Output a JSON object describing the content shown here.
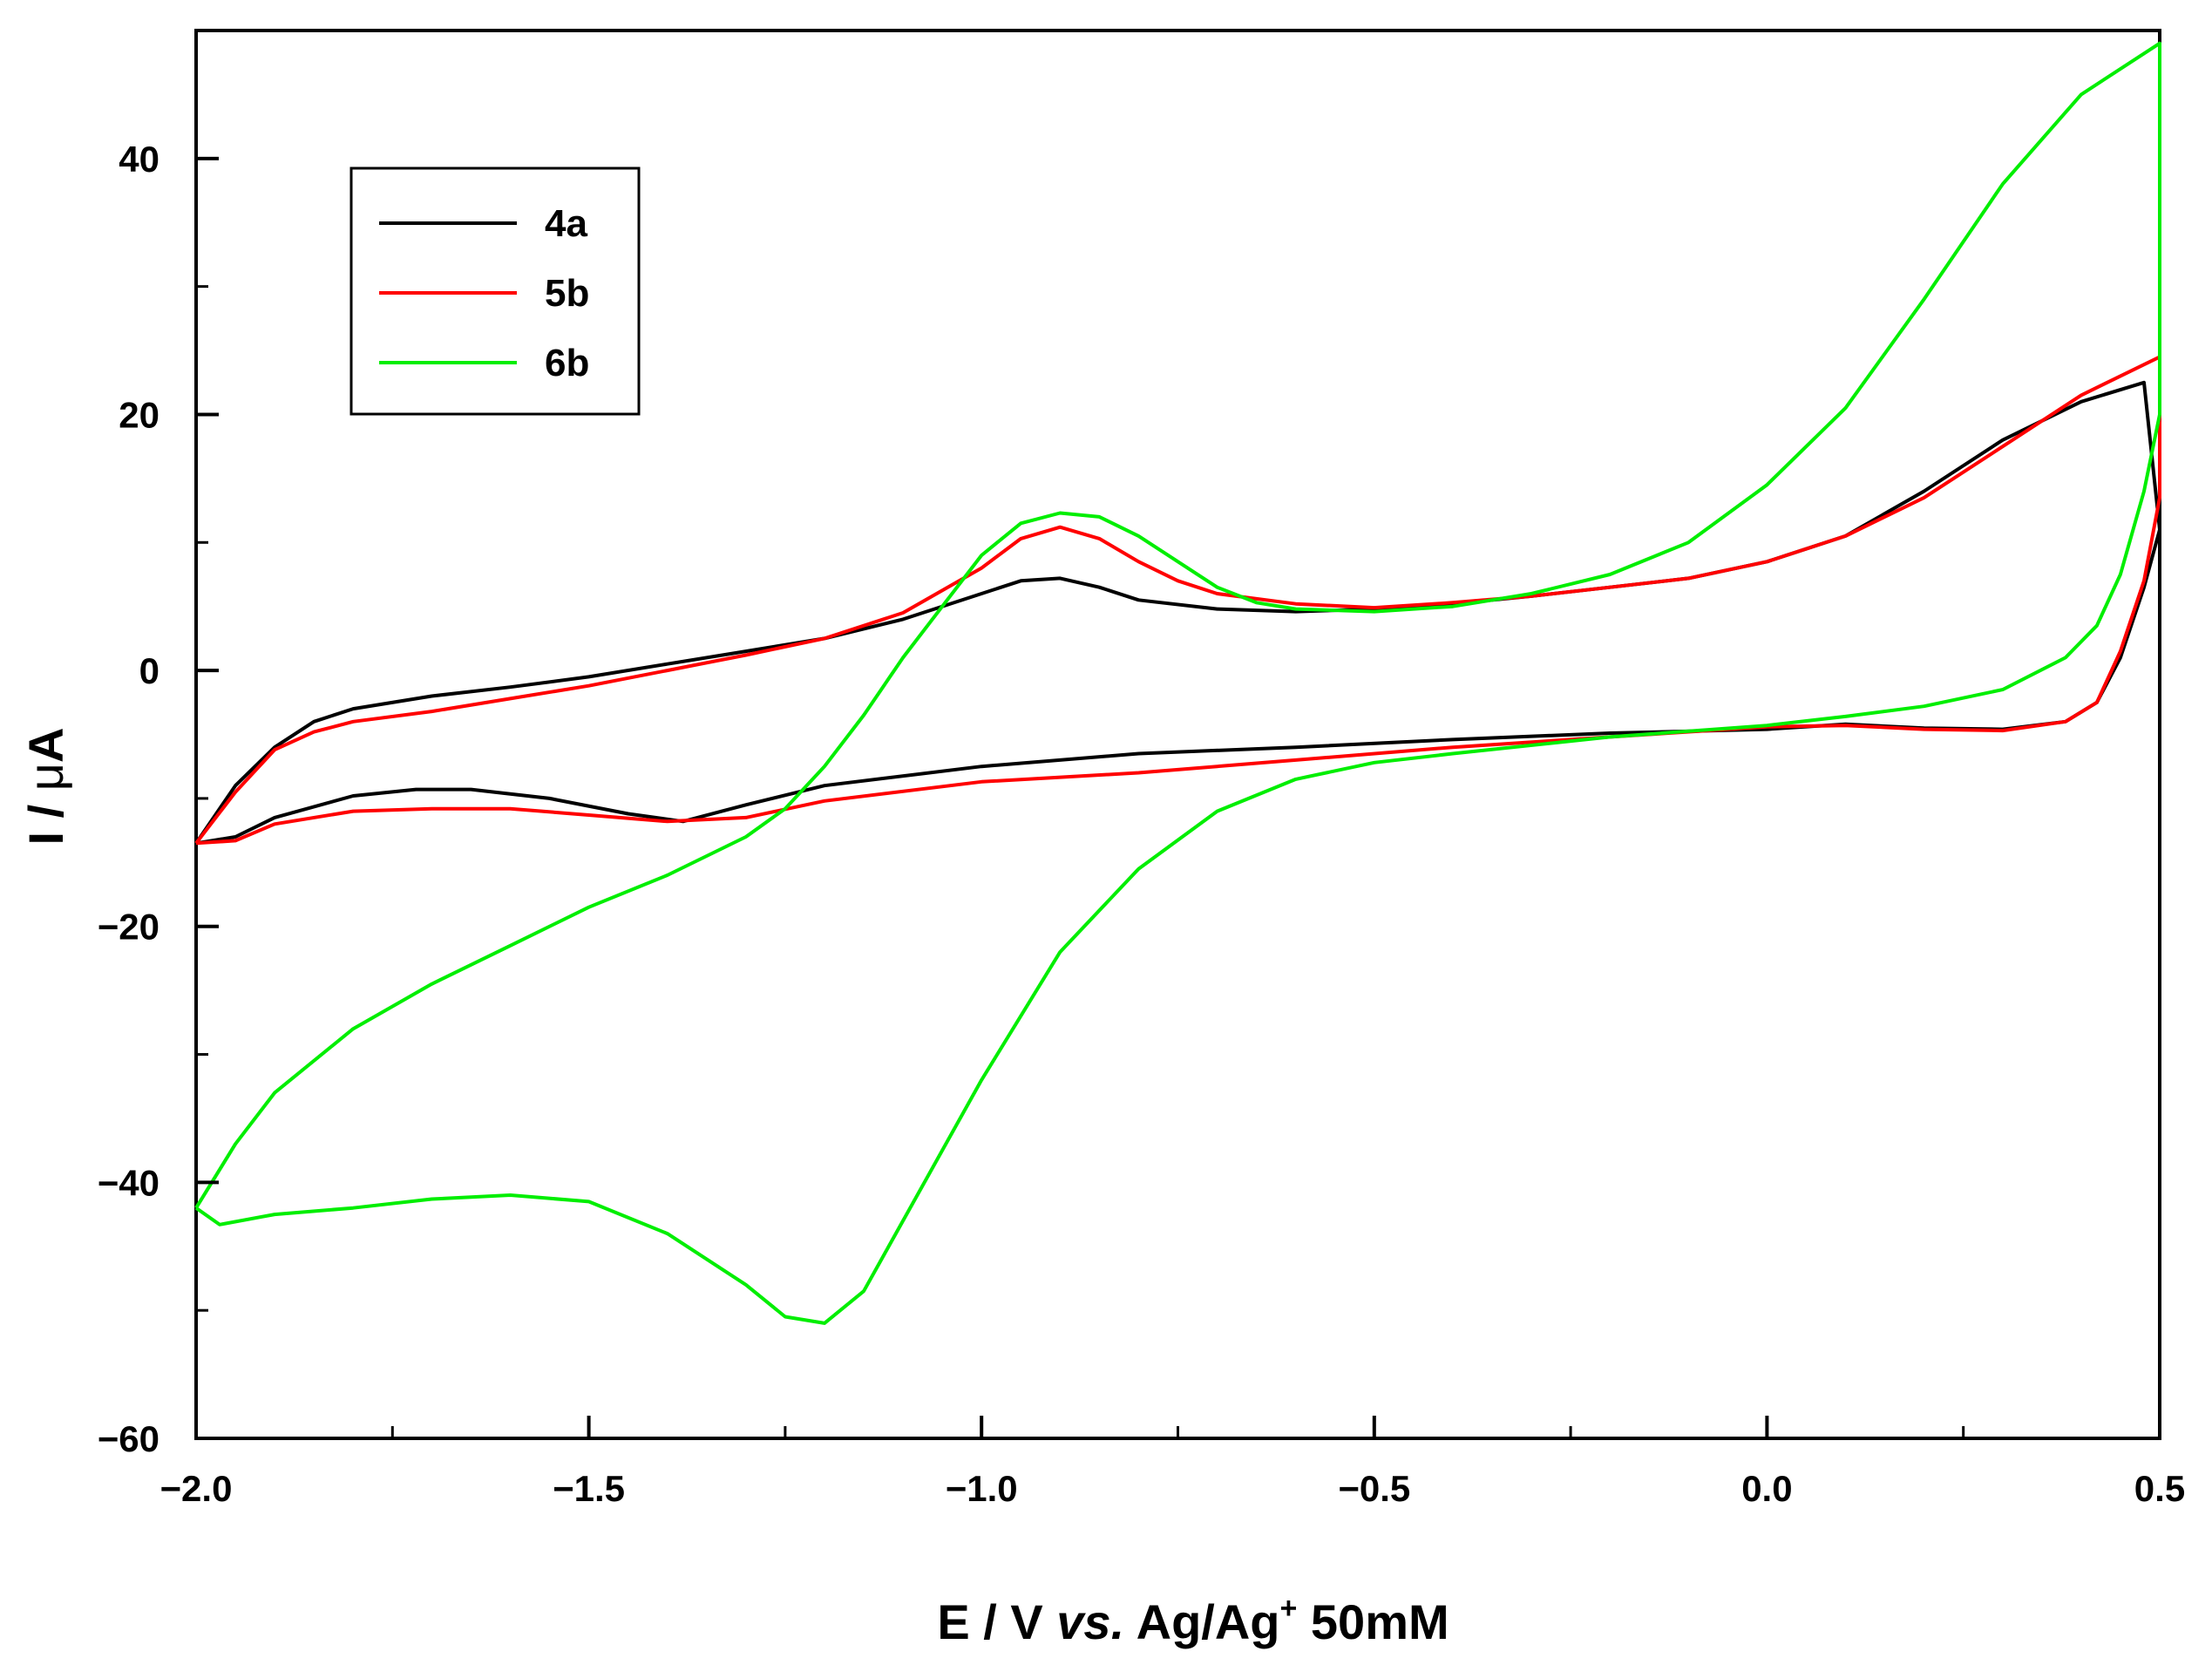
{
  "chart_data": {
    "type": "line",
    "title": "",
    "xlabel": {
      "prefix": "E / V ",
      "italic": "vs.",
      "ref": " Ag/Ag",
      "sup": "+",
      "suffix": " 50mM"
    },
    "ylabel": {
      "prefix": "I / ",
      "mu": "μ",
      "unit": "A"
    },
    "xlim": [
      -2.0,
      0.5
    ],
    "ylim": [
      -60,
      50
    ],
    "x_ticks": [
      -2.0,
      -1.5,
      -1.0,
      -0.5,
      0.0,
      0.5
    ],
    "x_tick_labels": [
      "−2.0",
      "−1.5",
      "−1.0",
      "−0.5",
      "0.0",
      "0.5"
    ],
    "y_ticks": [
      -60,
      -40,
      -20,
      0,
      20,
      40
    ],
    "y_tick_labels": [
      "−60",
      "−40",
      "−20",
      "0",
      "20",
      "40"
    ],
    "grid": false,
    "legend_position": "top-left",
    "series": [
      {
        "name": "4a",
        "color": "#000000",
        "points": [
          [
            -2.0,
            -13.5
          ],
          [
            -1.95,
            -9.0
          ],
          [
            -1.9,
            -6.0
          ],
          [
            -1.85,
            -4.0
          ],
          [
            -1.8,
            -3.0
          ],
          [
            -1.7,
            -2.0
          ],
          [
            -1.6,
            -1.3
          ],
          [
            -1.5,
            -0.5
          ],
          [
            -1.4,
            0.5
          ],
          [
            -1.3,
            1.5
          ],
          [
            -1.2,
            2.5
          ],
          [
            -1.1,
            4.0
          ],
          [
            -1.0,
            6.0
          ],
          [
            -0.95,
            7.0
          ],
          [
            -0.9,
            7.2
          ],
          [
            -0.85,
            6.5
          ],
          [
            -0.8,
            5.5
          ],
          [
            -0.7,
            4.8
          ],
          [
            -0.6,
            4.6
          ],
          [
            -0.5,
            4.8
          ],
          [
            -0.4,
            5.2
          ],
          [
            -0.3,
            5.8
          ],
          [
            -0.2,
            6.5
          ],
          [
            -0.1,
            7.2
          ],
          [
            0.0,
            8.5
          ],
          [
            0.1,
            10.5
          ],
          [
            0.2,
            14.0
          ],
          [
            0.3,
            18.0
          ],
          [
            0.4,
            21.0
          ],
          [
            0.48,
            22.5
          ],
          [
            0.5,
            11.0
          ],
          [
            0.48,
            6.5
          ],
          [
            0.45,
            1.0
          ],
          [
            0.42,
            -2.5
          ],
          [
            0.38,
            -4.0
          ],
          [
            0.3,
            -4.6
          ],
          [
            0.2,
            -4.5
          ],
          [
            0.1,
            -4.2
          ],
          [
            0.0,
            -4.6
          ],
          [
            -0.2,
            -4.9
          ],
          [
            -0.4,
            -5.4
          ],
          [
            -0.6,
            -6.0
          ],
          [
            -0.8,
            -6.5
          ],
          [
            -1.0,
            -7.5
          ],
          [
            -1.2,
            -9.0
          ],
          [
            -1.3,
            -10.5
          ],
          [
            -1.38,
            -11.8
          ],
          [
            -1.45,
            -11.2
          ],
          [
            -1.55,
            -10.0
          ],
          [
            -1.65,
            -9.3
          ],
          [
            -1.72,
            -9.3
          ],
          [
            -1.8,
            -9.8
          ],
          [
            -1.9,
            -11.5
          ],
          [
            -1.95,
            -13.0
          ],
          [
            -2.0,
            -13.5
          ]
        ]
      },
      {
        "name": "5b",
        "color": "#ff0000",
        "points": [
          [
            -2.0,
            -13.5
          ],
          [
            -1.95,
            -9.5
          ],
          [
            -1.9,
            -6.2
          ],
          [
            -1.85,
            -4.8
          ],
          [
            -1.8,
            -4.0
          ],
          [
            -1.7,
            -3.2
          ],
          [
            -1.6,
            -2.2
          ],
          [
            -1.5,
            -1.2
          ],
          [
            -1.4,
            0.0
          ],
          [
            -1.3,
            1.2
          ],
          [
            -1.2,
            2.5
          ],
          [
            -1.1,
            4.5
          ],
          [
            -1.0,
            8.0
          ],
          [
            -0.95,
            10.3
          ],
          [
            -0.9,
            11.2
          ],
          [
            -0.85,
            10.3
          ],
          [
            -0.8,
            8.5
          ],
          [
            -0.75,
            7.0
          ],
          [
            -0.7,
            6.0
          ],
          [
            -0.6,
            5.2
          ],
          [
            -0.5,
            4.9
          ],
          [
            -0.4,
            5.3
          ],
          [
            -0.3,
            5.8
          ],
          [
            -0.2,
            6.5
          ],
          [
            -0.1,
            7.2
          ],
          [
            0.0,
            8.5
          ],
          [
            0.1,
            10.5
          ],
          [
            0.2,
            13.5
          ],
          [
            0.3,
            17.5
          ],
          [
            0.4,
            21.5
          ],
          [
            0.5,
            24.5
          ],
          [
            0.5,
            13.5
          ],
          [
            0.48,
            7.0
          ],
          [
            0.45,
            1.5
          ],
          [
            0.42,
            -2.5
          ],
          [
            0.38,
            -4.0
          ],
          [
            0.3,
            -4.7
          ],
          [
            0.2,
            -4.6
          ],
          [
            0.1,
            -4.3
          ],
          [
            0.0,
            -4.4
          ],
          [
            -0.2,
            -5.2
          ],
          [
            -0.4,
            -6.0
          ],
          [
            -0.6,
            -7.0
          ],
          [
            -0.8,
            -8.0
          ],
          [
            -1.0,
            -8.7
          ],
          [
            -1.2,
            -10.2
          ],
          [
            -1.3,
            -11.5
          ],
          [
            -1.4,
            -11.8
          ],
          [
            -1.5,
            -11.3
          ],
          [
            -1.6,
            -10.8
          ],
          [
            -1.7,
            -10.8
          ],
          [
            -1.8,
            -11.0
          ],
          [
            -1.9,
            -12.0
          ],
          [
            -1.95,
            -13.3
          ],
          [
            -2.0,
            -13.5
          ]
        ]
      },
      {
        "name": "6b",
        "color": "#00ee00",
        "points": [
          [
            -2.0,
            -42.0
          ],
          [
            -1.95,
            -37.0
          ],
          [
            -1.9,
            -33.0
          ],
          [
            -1.8,
            -28.0
          ],
          [
            -1.7,
            -24.5
          ],
          [
            -1.6,
            -21.5
          ],
          [
            -1.5,
            -18.5
          ],
          [
            -1.4,
            -16.0
          ],
          [
            -1.3,
            -13.0
          ],
          [
            -1.25,
            -10.8
          ],
          [
            -1.2,
            -7.5
          ],
          [
            -1.15,
            -3.5
          ],
          [
            -1.1,
            1.0
          ],
          [
            -1.05,
            5.0
          ],
          [
            -1.0,
            9.0
          ],
          [
            -0.95,
            11.5
          ],
          [
            -0.9,
            12.3
          ],
          [
            -0.85,
            12.0
          ],
          [
            -0.8,
            10.5
          ],
          [
            -0.75,
            8.5
          ],
          [
            -0.7,
            6.5
          ],
          [
            -0.65,
            5.3
          ],
          [
            -0.6,
            4.8
          ],
          [
            -0.5,
            4.6
          ],
          [
            -0.4,
            5.0
          ],
          [
            -0.3,
            6.0
          ],
          [
            -0.2,
            7.5
          ],
          [
            -0.1,
            10.0
          ],
          [
            0.0,
            14.5
          ],
          [
            0.1,
            20.5
          ],
          [
            0.2,
            29.0
          ],
          [
            0.3,
            38.0
          ],
          [
            0.4,
            45.0
          ],
          [
            0.5,
            49.0
          ],
          [
            0.5,
            20.0
          ],
          [
            0.48,
            14.0
          ],
          [
            0.45,
            7.5
          ],
          [
            0.42,
            3.5
          ],
          [
            0.38,
            1.0
          ],
          [
            0.3,
            -1.5
          ],
          [
            0.2,
            -2.8
          ],
          [
            0.1,
            -3.6
          ],
          [
            0.0,
            -4.3
          ],
          [
            -0.2,
            -5.2
          ],
          [
            -0.4,
            -6.5
          ],
          [
            -0.5,
            -7.2
          ],
          [
            -0.6,
            -8.5
          ],
          [
            -0.7,
            -11.0
          ],
          [
            -0.8,
            -15.5
          ],
          [
            -0.9,
            -22.0
          ],
          [
            -1.0,
            -32.0
          ],
          [
            -1.1,
            -43.0
          ],
          [
            -1.15,
            -48.5
          ],
          [
            -1.2,
            -51.0
          ],
          [
            -1.25,
            -50.5
          ],
          [
            -1.3,
            -48.0
          ],
          [
            -1.4,
            -44.0
          ],
          [
            -1.5,
            -41.5
          ],
          [
            -1.6,
            -41.0
          ],
          [
            -1.7,
            -41.3
          ],
          [
            -1.8,
            -42.0
          ],
          [
            -1.9,
            -42.5
          ],
          [
            -1.97,
            -43.3
          ],
          [
            -2.0,
            -42.0
          ]
        ]
      }
    ]
  }
}
